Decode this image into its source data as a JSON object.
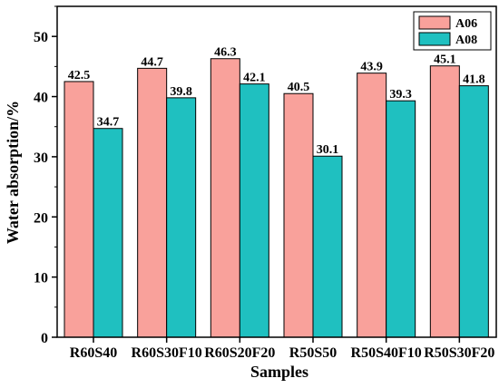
{
  "chart_data": {
    "type": "bar",
    "categories": [
      "R60S40",
      "R60S30F10",
      "R60S20F20",
      "R50S50",
      "R50S40F10",
      "R50S30F20"
    ],
    "series": [
      {
        "name": "A06",
        "values": [
          42.5,
          44.7,
          46.3,
          40.5,
          43.9,
          45.1
        ],
        "color": "#f9a19b"
      },
      {
        "name": "A08",
        "values": [
          34.7,
          39.8,
          42.1,
          30.1,
          39.3,
          41.8
        ],
        "color": "#1fc0c0"
      }
    ],
    "data_labels": {
      "A06": [
        "42.5",
        "44.7",
        "46.3",
        "40.5",
        "43.9",
        "45.1"
      ],
      "A08": [
        "34.7",
        "39.8",
        "42.1",
        "30.1",
        "39.3",
        "41.8"
      ]
    },
    "xlabel": "Samples",
    "ylabel": "Water absorption/%",
    "ylim": [
      0,
      55
    ],
    "yticks": [
      0,
      10,
      20,
      30,
      40,
      50
    ],
    "legend_position": "top-right",
    "grid": false
  }
}
